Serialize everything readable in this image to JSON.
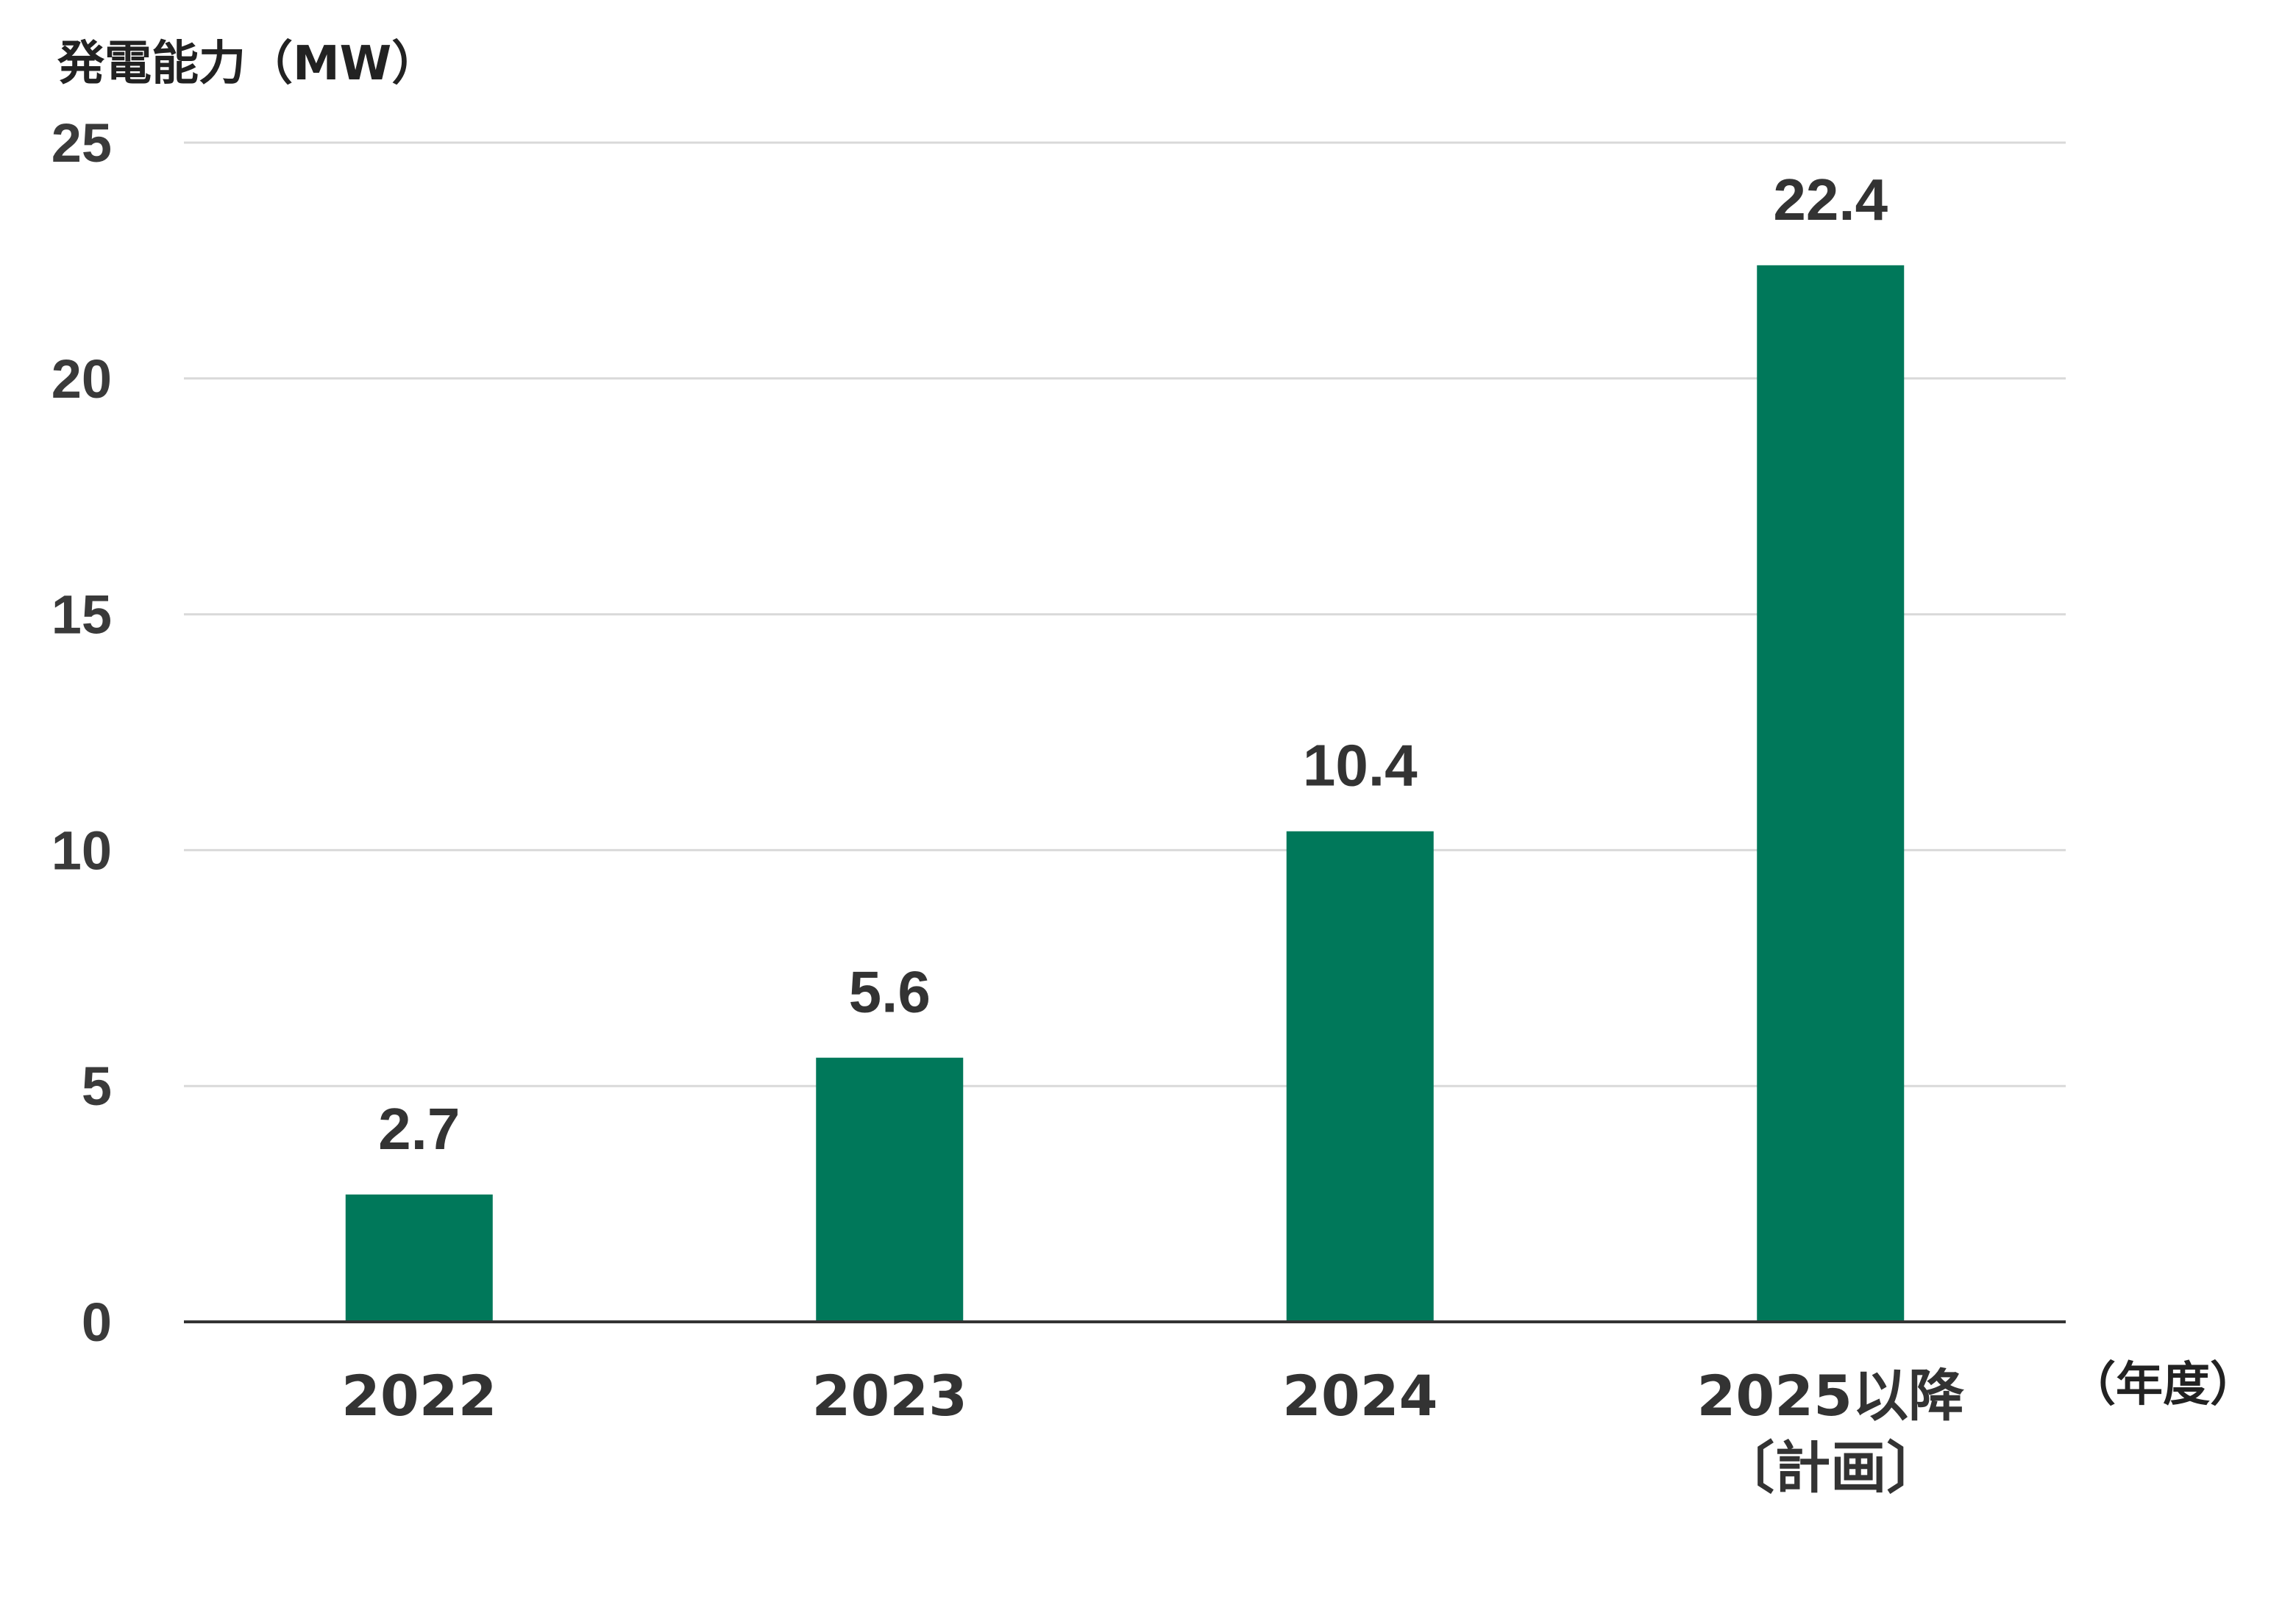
{
  "chart_data": {
    "type": "bar",
    "ylabel": "発電能力（MW）",
    "xlabel": "（年度）",
    "categories": [
      [
        "2022"
      ],
      [
        "2023"
      ],
      [
        "2024"
      ],
      [
        "2025以降",
        "〔計画〕"
      ]
    ],
    "values": [
      2.7,
      5.6,
      10.4,
      22.4
    ],
    "value_labels": [
      "2.7",
      "5.6",
      "10.4",
      "22.4"
    ],
    "ylim": [
      0,
      25
    ],
    "yticks": [
      0,
      5,
      10,
      15,
      20,
      25
    ],
    "grid": true,
    "legend": "none",
    "bar_color": "#00785a"
  }
}
